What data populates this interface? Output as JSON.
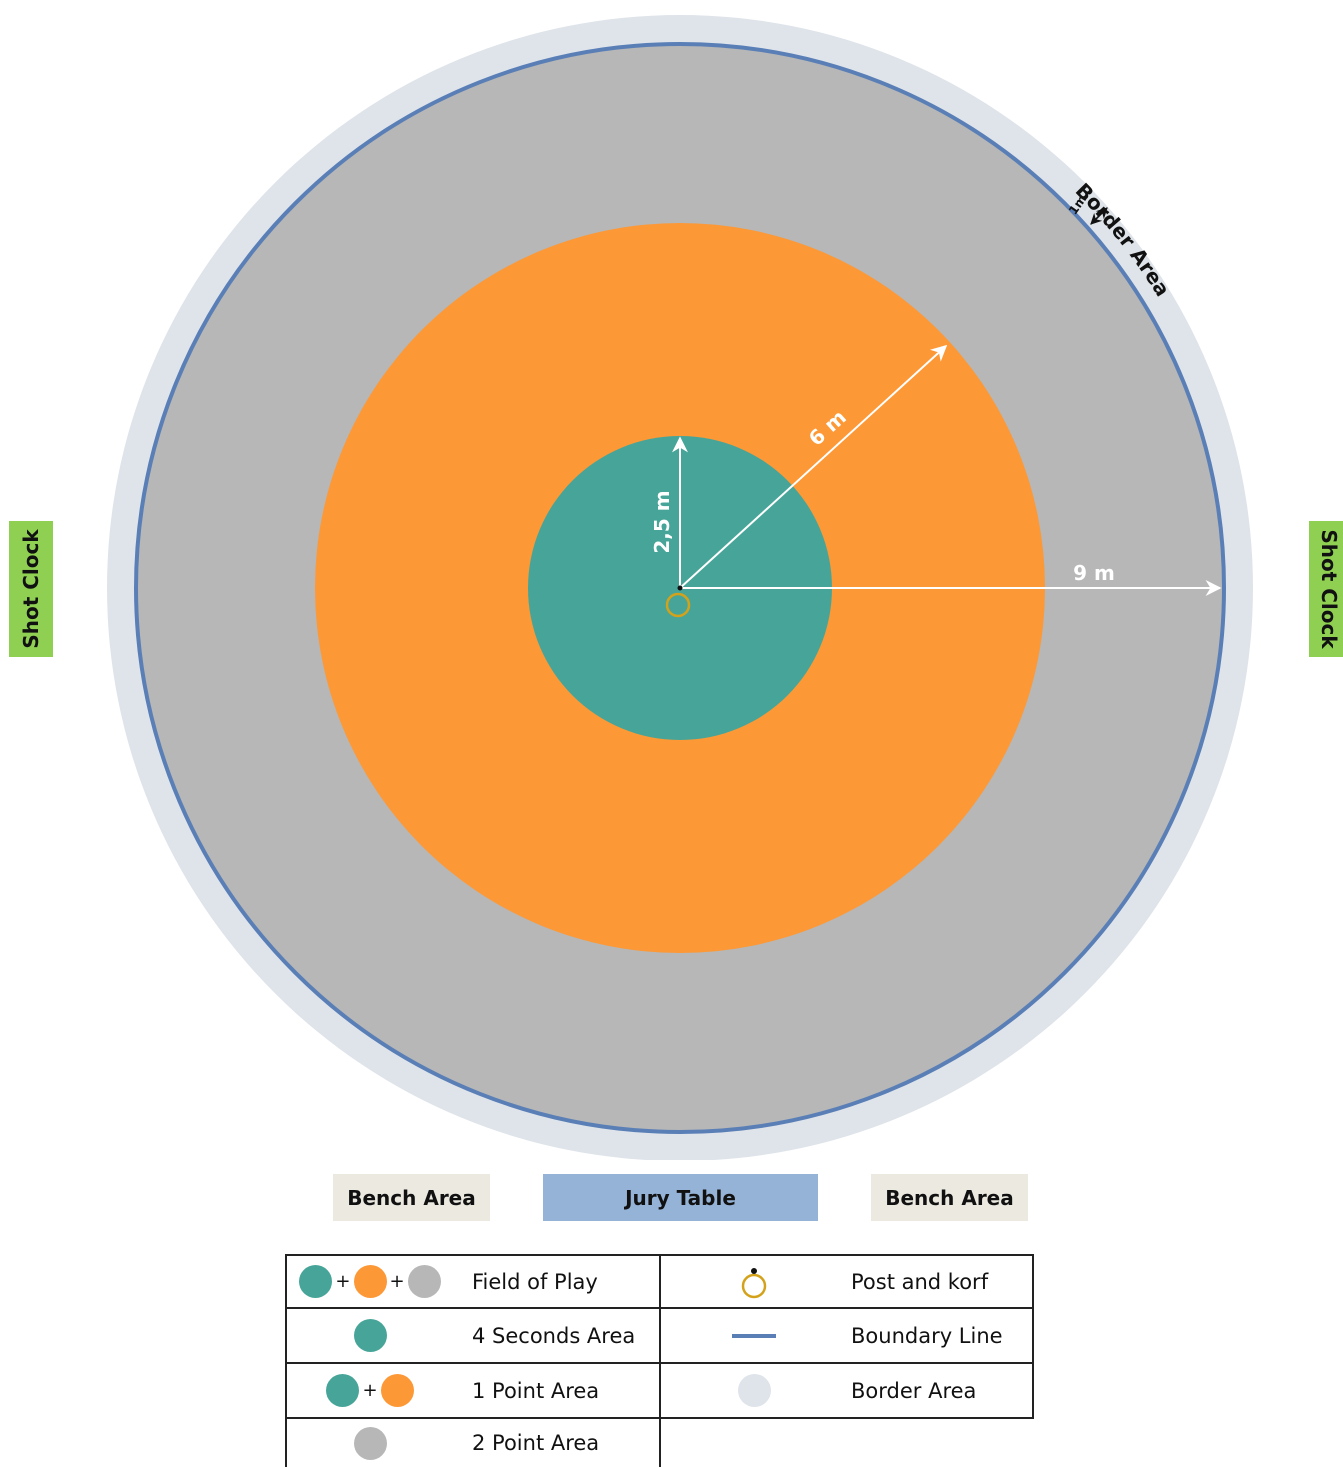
{
  "colors": {
    "border_area": "#dfe4ea",
    "boundary_line": "#5a7fb7",
    "two_point": "#b6b7b6",
    "one_point": "#fd9836",
    "four_seconds": "#46a598",
    "post": "#d4a21a",
    "shot_clock": "#8fd053",
    "bench": "#ece9e1",
    "jury": "#95b3d7"
  },
  "court": {
    "label_9m": "9 m",
    "label_6m": "6 m",
    "label_2_5m": "2,5 m",
    "label_1m": "1m",
    "border_area_label": "Border Area"
  },
  "shot_clock_left": "Shot Clock",
  "shot_clock_right": "Shot Clock",
  "bench_left": "Bench Area",
  "jury_table": "Jury Table",
  "bench_right": "Bench Area",
  "legend": {
    "field_of_play": "Field of Play",
    "four_seconds_area": "4 Seconds Area",
    "one_point_area": "1 Point Area",
    "two_point_area": "2 Point Area",
    "post_and_korf": "Post and korf",
    "boundary_line": "Boundary Line",
    "border_area": "Border Area",
    "plus": "+"
  }
}
